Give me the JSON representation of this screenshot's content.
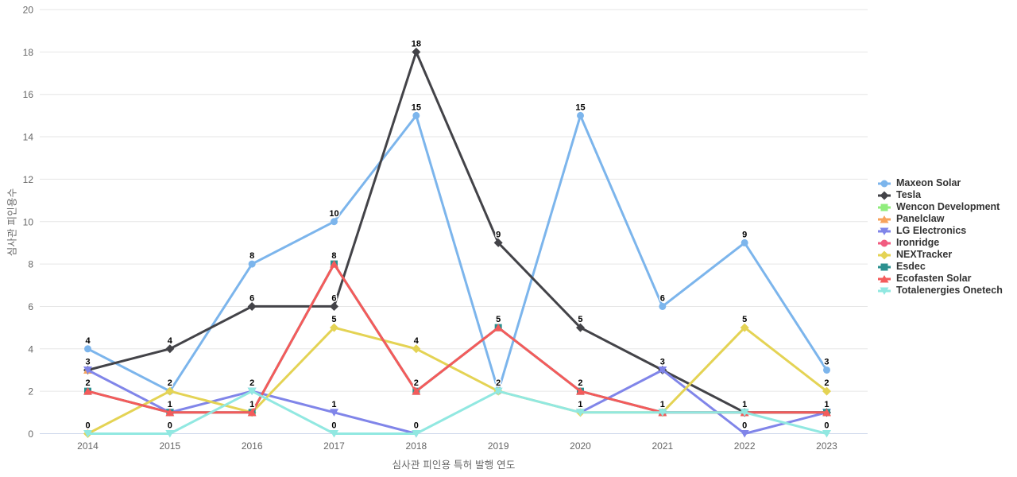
{
  "chart_data": {
    "type": "line",
    "title": "",
    "xlabel": "심사관 피인용 특허 발행 연도",
    "ylabel": "심사관 피인용수",
    "x": [
      2014,
      2015,
      2016,
      2017,
      2018,
      2019,
      2020,
      2021,
      2022,
      2023
    ],
    "ylim": [
      0,
      20
    ],
    "yticks": [
      0,
      2,
      4,
      6,
      8,
      10,
      12,
      14,
      16,
      18,
      20
    ],
    "grid": "horizontal-only",
    "legend_position": "right-middle",
    "data_labels": true,
    "series": [
      {
        "name": "Maxeon Solar",
        "color": "#7cb5ec",
        "marker": "circle",
        "values": [
          4,
          2,
          8,
          10,
          15,
          2,
          15,
          6,
          9,
          3
        ]
      },
      {
        "name": "Tesla",
        "color": "#434348",
        "marker": "diamond",
        "values": [
          3,
          4,
          6,
          6,
          18,
          9,
          5,
          3,
          1,
          1
        ]
      },
      {
        "name": "Wencon Development",
        "color": "#90ed7d",
        "marker": "square",
        "values": [
          null,
          null,
          null,
          null,
          null,
          null,
          null,
          null,
          null,
          null
        ]
      },
      {
        "name": "Panelclaw",
        "color": "#f7a35c",
        "marker": "triangle",
        "values": [
          3,
          null,
          null,
          null,
          null,
          null,
          null,
          null,
          null,
          null
        ]
      },
      {
        "name": "LG Electronics",
        "color": "#8085e9",
        "marker": "triangle-down",
        "values": [
          3,
          1,
          2,
          1,
          0,
          null,
          1,
          3,
          0,
          1
        ]
      },
      {
        "name": "Ironridge",
        "color": "#f15c80",
        "marker": "circle",
        "values": [
          null,
          null,
          null,
          null,
          null,
          null,
          null,
          null,
          null,
          null
        ]
      },
      {
        "name": "NEXTracker",
        "color": "#e4d354",
        "marker": "diamond",
        "values": [
          0,
          2,
          1,
          5,
          4,
          2,
          1,
          1,
          5,
          2
        ]
      },
      {
        "name": "Esdec",
        "color": "#2b908f",
        "marker": "square",
        "values": [
          2,
          1,
          1,
          8,
          2,
          5,
          2,
          1,
          1,
          1
        ]
      },
      {
        "name": "Ecofasten Solar",
        "color": "#f45b5b",
        "marker": "triangle",
        "values": [
          2,
          1,
          1,
          8,
          2,
          5,
          2,
          1,
          1,
          1
        ]
      },
      {
        "name": "Totalenergies Onetech",
        "color": "#91e8e1",
        "marker": "triangle-down",
        "values": [
          0,
          0,
          2,
          0,
          0,
          2,
          1,
          1,
          1,
          0
        ]
      }
    ],
    "style": {
      "background": "#ffffff",
      "grid_color": "#e6e6e6",
      "x_axis_line_color": "#ccd6eb",
      "tick_label_color": "#666666",
      "axis_title_color": "#666666",
      "legend_text_color": "#333333",
      "data_label_color": "#000000"
    }
  }
}
